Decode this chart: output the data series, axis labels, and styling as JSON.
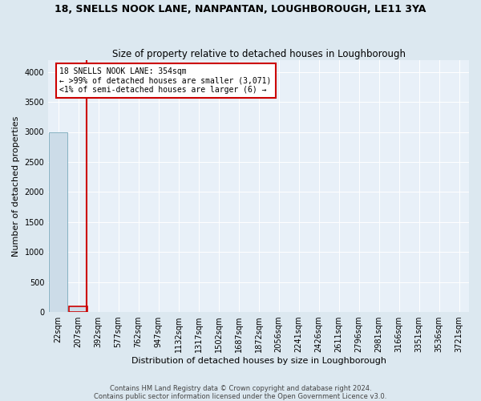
{
  "title": "18, SNELLS NOOK LANE, NANPANTAN, LOUGHBOROUGH, LE11 3YA",
  "subtitle": "Size of property relative to detached houses in Loughborough",
  "xlabel": "Distribution of detached houses by size in Loughborough",
  "ylabel": "Number of detached properties",
  "bar_labels": [
    "22sqm",
    "207sqm",
    "392sqm",
    "577sqm",
    "762sqm",
    "947sqm",
    "1132sqm",
    "1317sqm",
    "1502sqm",
    "1687sqm",
    "1872sqm",
    "2056sqm",
    "2241sqm",
    "2426sqm",
    "2611sqm",
    "2796sqm",
    "2981sqm",
    "3166sqm",
    "3351sqm",
    "3536sqm",
    "3721sqm"
  ],
  "bar_values": [
    2990,
    100,
    4,
    1,
    0,
    0,
    0,
    0,
    0,
    0,
    0,
    0,
    0,
    0,
    0,
    0,
    0,
    0,
    0,
    0,
    0
  ],
  "bar_color": "#ccdce8",
  "bar_edge_color": "#7aaabb",
  "highlight_bar_index": 1,
  "highlight_bar_edge_color": "#cc0000",
  "vline_x": 1.42,
  "vline_color": "#cc0000",
  "annotation_text": "18 SNELLS NOOK LANE: 354sqm\n← >99% of detached houses are smaller (3,071)\n<1% of semi-detached houses are larger (6) →",
  "annotation_box_facecolor": "#ffffff",
  "annotation_box_edgecolor": "#cc0000",
  "ylim": [
    0,
    4200
  ],
  "yticks": [
    0,
    500,
    1000,
    1500,
    2000,
    2500,
    3000,
    3500,
    4000
  ],
  "footer_line1": "Contains HM Land Registry data © Crown copyright and database right 2024.",
  "footer_line2": "Contains public sector information licensed under the Open Government Licence v3.0.",
  "bg_color": "#dce8f0",
  "plot_bg_color": "#e8f0f8",
  "grid_color": "#ffffff",
  "title_fontsize": 9,
  "subtitle_fontsize": 8.5,
  "xlabel_fontsize": 8,
  "ylabel_fontsize": 8,
  "tick_fontsize": 7,
  "annotation_fontsize": 7,
  "footer_fontsize": 6
}
